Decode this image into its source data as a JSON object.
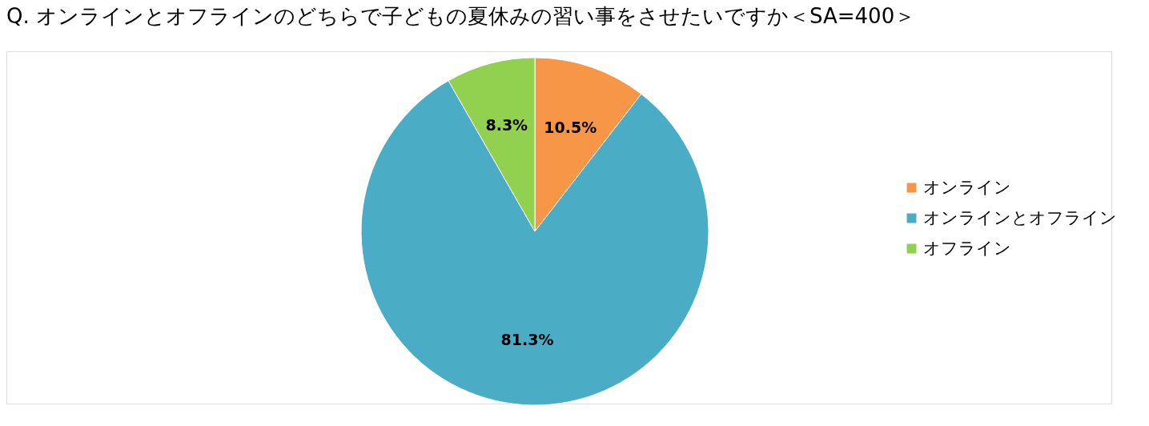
{
  "chart_data": {
    "type": "pie",
    "title": "Q. オンラインとオフラインのどちらで子どもの夏休みの習い事をさせたいですか＜SA=400＞",
    "categories": [
      "オンライン",
      "オンラインとオフライン",
      "オフライン"
    ],
    "values": [
      10.5,
      81.3,
      8.3
    ],
    "value_labels": [
      "10.5%",
      "81.3%",
      "8.3%"
    ],
    "colors": [
      "#f79646",
      "#4bacc6",
      "#92d050"
    ],
    "legend": "right"
  }
}
